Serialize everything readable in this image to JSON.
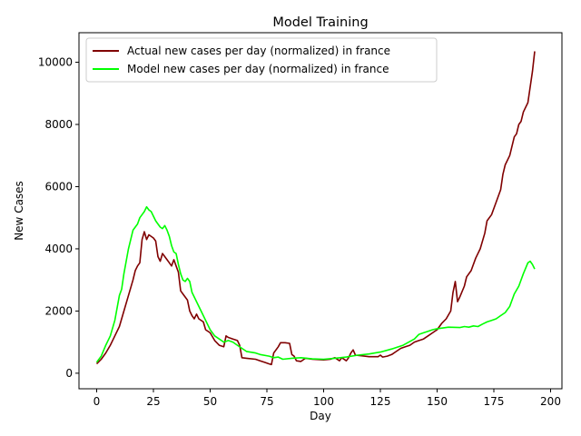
{
  "chart_data": {
    "type": "line",
    "title": "Model Training",
    "xlabel": "Day",
    "ylabel": "New Cases",
    "xlim": [
      -7.8,
      205
    ],
    "ylim": [
      -500,
      10950
    ],
    "xticks": [
      0,
      25,
      50,
      75,
      100,
      125,
      150,
      175,
      200
    ],
    "yticks": [
      0,
      2000,
      4000,
      6000,
      8000,
      10000
    ],
    "grid": false,
    "legend_position": "top-left",
    "series": [
      {
        "name": "Actual new cases per day (normalized) in france",
        "color": "#800000",
        "points": [
          [
            0,
            300
          ],
          [
            2,
            450
          ],
          [
            4,
            650
          ],
          [
            6,
            900
          ],
          [
            8,
            1200
          ],
          [
            10,
            1500
          ],
          [
            12,
            2000
          ],
          [
            14,
            2500
          ],
          [
            16,
            3000
          ],
          [
            17,
            3300
          ],
          [
            18,
            3450
          ],
          [
            19,
            3550
          ],
          [
            20,
            4300
          ],
          [
            21,
            4550
          ],
          [
            22,
            4300
          ],
          [
            23,
            4450
          ],
          [
            25,
            4350
          ],
          [
            26,
            4250
          ],
          [
            27,
            3750
          ],
          [
            28,
            3600
          ],
          [
            29,
            3850
          ],
          [
            30,
            3750
          ],
          [
            31,
            3650
          ],
          [
            32,
            3550
          ],
          [
            33,
            3450
          ],
          [
            34,
            3650
          ],
          [
            35,
            3450
          ],
          [
            36,
            3250
          ],
          [
            37,
            2650
          ],
          [
            38,
            2550
          ],
          [
            40,
            2350
          ],
          [
            41,
            2000
          ],
          [
            42,
            1850
          ],
          [
            43,
            1750
          ],
          [
            44,
            1900
          ],
          [
            45,
            1750
          ],
          [
            47,
            1650
          ],
          [
            48,
            1400
          ],
          [
            50,
            1300
          ],
          [
            52,
            1050
          ],
          [
            54,
            900
          ],
          [
            56,
            850
          ],
          [
            57,
            1200
          ],
          [
            58,
            1150
          ],
          [
            60,
            1100
          ],
          [
            62,
            1050
          ],
          [
            63,
            900
          ],
          [
            64,
            500
          ],
          [
            66,
            480
          ],
          [
            70,
            450
          ],
          [
            72,
            400
          ],
          [
            74,
            350
          ],
          [
            76,
            300
          ],
          [
            77,
            280
          ],
          [
            78,
            650
          ],
          [
            80,
            850
          ],
          [
            81,
            980
          ],
          [
            83,
            980
          ],
          [
            85,
            960
          ],
          [
            86,
            600
          ],
          [
            87,
            550
          ],
          [
            88,
            400
          ],
          [
            90,
            380
          ],
          [
            92,
            480
          ],
          [
            95,
            450
          ],
          [
            100,
            430
          ],
          [
            103,
            450
          ],
          [
            105,
            500
          ],
          [
            107,
            400
          ],
          [
            108,
            500
          ],
          [
            110,
            400
          ],
          [
            111,
            500
          ],
          [
            112,
            650
          ],
          [
            113,
            750
          ],
          [
            114,
            580
          ],
          [
            118,
            550
          ],
          [
            120,
            530
          ],
          [
            124,
            530
          ],
          [
            125,
            580
          ],
          [
            126,
            520
          ],
          [
            128,
            550
          ],
          [
            130,
            600
          ],
          [
            132,
            700
          ],
          [
            134,
            800
          ],
          [
            136,
            850
          ],
          [
            138,
            900
          ],
          [
            140,
            1000
          ],
          [
            142,
            1050
          ],
          [
            144,
            1100
          ],
          [
            146,
            1200
          ],
          [
            148,
            1300
          ],
          [
            150,
            1400
          ],
          [
            152,
            1600
          ],
          [
            154,
            1750
          ],
          [
            156,
            2000
          ],
          [
            157,
            2600
          ],
          [
            158,
            2950
          ],
          [
            159,
            2300
          ],
          [
            160,
            2450
          ],
          [
            162,
            2800
          ],
          [
            163,
            3100
          ],
          [
            165,
            3300
          ],
          [
            167,
            3700
          ],
          [
            169,
            4000
          ],
          [
            171,
            4500
          ],
          [
            172,
            4900
          ],
          [
            174,
            5100
          ],
          [
            176,
            5500
          ],
          [
            178,
            5900
          ],
          [
            179,
            6400
          ],
          [
            180,
            6700
          ],
          [
            182,
            7000
          ],
          [
            184,
            7600
          ],
          [
            185,
            7700
          ],
          [
            186,
            8000
          ],
          [
            187,
            8100
          ],
          [
            188,
            8400
          ],
          [
            190,
            8700
          ],
          [
            191,
            9200
          ],
          [
            192,
            9700
          ],
          [
            193,
            10350
          ]
        ]
      },
      {
        "name": "Model new cases per day (normalized) in france",
        "color": "#00ff00",
        "points": [
          [
            0,
            350
          ],
          [
            2,
            550
          ],
          [
            4,
            900
          ],
          [
            6,
            1200
          ],
          [
            8,
            1700
          ],
          [
            10,
            2500
          ],
          [
            11,
            2700
          ],
          [
            12,
            3200
          ],
          [
            13,
            3600
          ],
          [
            14,
            4000
          ],
          [
            15,
            4300
          ],
          [
            16,
            4600
          ],
          [
            17,
            4700
          ],
          [
            18,
            4800
          ],
          [
            19,
            5000
          ],
          [
            20,
            5100
          ],
          [
            21,
            5200
          ],
          [
            22,
            5350
          ],
          [
            23,
            5250
          ],
          [
            24,
            5200
          ],
          [
            25,
            5050
          ],
          [
            26,
            4900
          ],
          [
            27,
            4800
          ],
          [
            28,
            4700
          ],
          [
            29,
            4650
          ],
          [
            30,
            4750
          ],
          [
            31,
            4600
          ],
          [
            32,
            4400
          ],
          [
            33,
            4100
          ],
          [
            34,
            3900
          ],
          [
            35,
            3850
          ],
          [
            36,
            3500
          ],
          [
            37,
            3200
          ],
          [
            38,
            3000
          ],
          [
            39,
            2950
          ],
          [
            40,
            3050
          ],
          [
            41,
            2950
          ],
          [
            42,
            2600
          ],
          [
            44,
            2300
          ],
          [
            46,
            2000
          ],
          [
            48,
            1700
          ],
          [
            50,
            1400
          ],
          [
            52,
            1200
          ],
          [
            54,
            1100
          ],
          [
            56,
            1000
          ],
          [
            58,
            1050
          ],
          [
            60,
            1000
          ],
          [
            62,
            900
          ],
          [
            64,
            800
          ],
          [
            66,
            700
          ],
          [
            70,
            650
          ],
          [
            72,
            600
          ],
          [
            76,
            550
          ],
          [
            78,
            500
          ],
          [
            80,
            520
          ],
          [
            82,
            450
          ],
          [
            86,
            480
          ],
          [
            90,
            500
          ],
          [
            95,
            460
          ],
          [
            100,
            450
          ],
          [
            105,
            480
          ],
          [
            110,
            520
          ],
          [
            115,
            580
          ],
          [
            120,
            620
          ],
          [
            125,
            680
          ],
          [
            130,
            780
          ],
          [
            135,
            900
          ],
          [
            140,
            1100
          ],
          [
            142,
            1250
          ],
          [
            144,
            1300
          ],
          [
            146,
            1350
          ],
          [
            148,
            1400
          ],
          [
            150,
            1430
          ],
          [
            155,
            1480
          ],
          [
            160,
            1470
          ],
          [
            162,
            1500
          ],
          [
            164,
            1480
          ],
          [
            166,
            1520
          ],
          [
            168,
            1500
          ],
          [
            170,
            1580
          ],
          [
            172,
            1650
          ],
          [
            174,
            1700
          ],
          [
            176,
            1750
          ],
          [
            178,
            1850
          ],
          [
            180,
            1950
          ],
          [
            182,
            2150
          ],
          [
            184,
            2550
          ],
          [
            186,
            2800
          ],
          [
            188,
            3200
          ],
          [
            190,
            3550
          ],
          [
            191,
            3600
          ],
          [
            192,
            3500
          ],
          [
            193,
            3350
          ]
        ]
      }
    ]
  }
}
